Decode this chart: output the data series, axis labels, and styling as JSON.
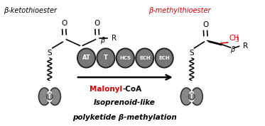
{
  "title_left": "β-ketothioester",
  "title_right": "β-methylthioester",
  "title_left_color": "#000000",
  "title_right_color": "#cc0000",
  "arrow_label_red": "Malonyl",
  "arrow_label_black": "-CoA",
  "bottom_text_line1": "Isoprenoid-like",
  "bottom_text_line2": "polyketide β-methylation",
  "enzyme_labels": [
    "AT",
    "T",
    "HCS",
    "ECH",
    "ECH"
  ],
  "enzyme_color_fill": "#777777",
  "enzyme_color_border": "#222222",
  "background": "#ffffff",
  "right_ch3_color": "#cc0000",
  "domain_fill": "#888888",
  "domain_border": "#333333",
  "black": "#000000"
}
